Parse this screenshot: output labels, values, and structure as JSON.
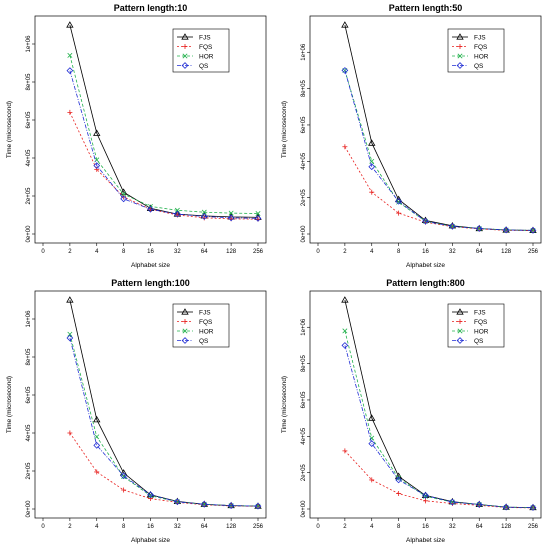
{
  "colors": {
    "FJS": "#000000",
    "FQS": "#e8211f",
    "HOR": "#22b14c",
    "QS": "#1f2cd4"
  },
  "chart_data": [
    {
      "type": "line",
      "title": "Pattern length:10",
      "xlabel": "Alphabet size",
      "ylabel": "Time (microsecond)",
      "x_tick_labels": [
        "0",
        "2",
        "4",
        "8",
        "16",
        "32",
        "64",
        "128",
        "256"
      ],
      "y_ticks": [
        0,
        200000,
        400000,
        600000,
        800000,
        1000000
      ],
      "y_tick_labels": [
        "0e+00",
        "2e+05",
        "4e+05",
        "6e+05",
        "8e+05",
        "1e+06"
      ],
      "ylim": [
        0,
        1100000
      ],
      "x": [
        "2",
        "4",
        "8",
        "16",
        "32",
        "64",
        "128",
        "256"
      ],
      "series": [
        {
          "name": "FJS",
          "values": [
            1100000,
            530000,
            220000,
            135000,
            105000,
            95000,
            90000,
            88000
          ]
        },
        {
          "name": "FQS",
          "values": [
            640000,
            340000,
            195000,
            130000,
            100000,
            85000,
            80000,
            78000
          ]
        },
        {
          "name": "HOR",
          "values": [
            940000,
            390000,
            210000,
            145000,
            125000,
            115000,
            110000,
            108000
          ]
        },
        {
          "name": "QS",
          "values": [
            860000,
            360000,
            185000,
            130000,
            105000,
            92000,
            85000,
            82000
          ]
        }
      ]
    },
    {
      "type": "line",
      "title": "Pattern length:50",
      "xlabel": "Alphabet size",
      "ylabel": "Time (microsecond)",
      "x_tick_labels": [
        "0",
        "2",
        "4",
        "8",
        "16",
        "32",
        "64",
        "128",
        "256"
      ],
      "y_ticks": [
        0,
        200000,
        400000,
        600000,
        800000,
        1000000
      ],
      "y_tick_labels": [
        "0e+00",
        "2e+05",
        "4e+05",
        "6e+05",
        "8e+05",
        "1e+06"
      ],
      "ylim": [
        0,
        1150000
      ],
      "x": [
        "2",
        "4",
        "8",
        "16",
        "32",
        "64",
        "128",
        "256"
      ],
      "series": [
        {
          "name": "FJS",
          "values": [
            1150000,
            500000,
            190000,
            75000,
            45000,
            30000,
            22000,
            20000
          ]
        },
        {
          "name": "FQS",
          "values": [
            480000,
            230000,
            115000,
            65000,
            40000,
            28000,
            20000,
            18000
          ]
        },
        {
          "name": "HOR",
          "values": [
            900000,
            400000,
            175000,
            70000,
            42000,
            30000,
            22000,
            20000
          ]
        },
        {
          "name": "QS",
          "values": [
            900000,
            370000,
            180000,
            70000,
            42000,
            30000,
            22000,
            20000
          ]
        }
      ]
    },
    {
      "type": "line",
      "title": "Pattern length:100",
      "xlabel": "Alphabet size",
      "ylabel": "Time (microsecond)",
      "x_tick_labels": [
        "0",
        "2",
        "4",
        "8",
        "16",
        "32",
        "64",
        "128",
        "256"
      ],
      "y_ticks": [
        0,
        200000,
        400000,
        600000,
        800000,
        1000000
      ],
      "y_tick_labels": [
        "0e+00",
        "2e+05",
        "4e+05",
        "6e+05",
        "8e+05",
        "1e+06"
      ],
      "ylim": [
        0,
        1100000
      ],
      "x": [
        "2",
        "4",
        "8",
        "16",
        "32",
        "64",
        "128",
        "256"
      ],
      "series": [
        {
          "name": "FJS",
          "values": [
            1100000,
            470000,
            190000,
            75000,
            40000,
            25000,
            18000,
            15000
          ]
        },
        {
          "name": "FQS",
          "values": [
            400000,
            195000,
            100000,
            55000,
            35000,
            22000,
            16000,
            14000
          ]
        },
        {
          "name": "HOR",
          "values": [
            920000,
            380000,
            170000,
            70000,
            38000,
            25000,
            18000,
            15000
          ]
        },
        {
          "name": "QS",
          "values": [
            900000,
            335000,
            175000,
            75000,
            38000,
            25000,
            18000,
            15000
          ]
        }
      ]
    },
    {
      "type": "line",
      "title": "Pattern length:800",
      "xlabel": "Alphabet size",
      "ylabel": "Time (microsecond)",
      "x_tick_labels": [
        "0",
        "2",
        "4",
        "8",
        "16",
        "32",
        "64",
        "128",
        "256"
      ],
      "y_ticks": [
        0,
        200000,
        400000,
        600000,
        800000,
        1000000
      ],
      "y_tick_labels": [
        "0e+00",
        "2e+05",
        "4e+05",
        "6e+05",
        "8e+05",
        "1e+06"
      ],
      "ylim": [
        0,
        1150000
      ],
      "x": [
        "2",
        "4",
        "8",
        "16",
        "32",
        "64",
        "128",
        "256"
      ],
      "series": [
        {
          "name": "FJS",
          "values": [
            1150000,
            500000,
            180000,
            75000,
            40000,
            25000,
            10000,
            8000
          ]
        },
        {
          "name": "FQS",
          "values": [
            320000,
            160000,
            85000,
            45000,
            30000,
            20000,
            8000,
            6000
          ]
        },
        {
          "name": "HOR",
          "values": [
            980000,
            390000,
            170000,
            70000,
            38000,
            25000,
            10000,
            8000
          ]
        },
        {
          "name": "QS",
          "values": [
            900000,
            360000,
            160000,
            75000,
            38000,
            25000,
            10000,
            8000
          ]
        }
      ]
    }
  ]
}
